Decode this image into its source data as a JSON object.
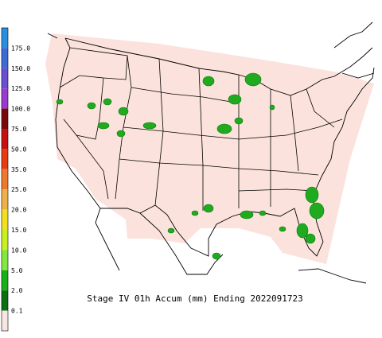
{
  "legend": {
    "ticks": [
      "175.0",
      "150.0",
      "125.0",
      "100.0",
      "75.0",
      "50.0",
      "35.0",
      "25.0",
      "20.0",
      "15.0",
      "10.0",
      "5.0",
      "2.0",
      "0.1"
    ],
    "colors": [
      "#2a8ee0",
      "#3c6ad8",
      "#6a4ed6",
      "#9a3ad0",
      "#7a0a0a",
      "#c81010",
      "#e83c10",
      "#f0782a",
      "#f0b048",
      "#f0e020",
      "#c8f020",
      "#80e840",
      "#18b018",
      "#0a7010",
      "#f8e4e0"
    ]
  },
  "caption": "Stage IV 01h Accum (mm) Ending 2022091723"
}
